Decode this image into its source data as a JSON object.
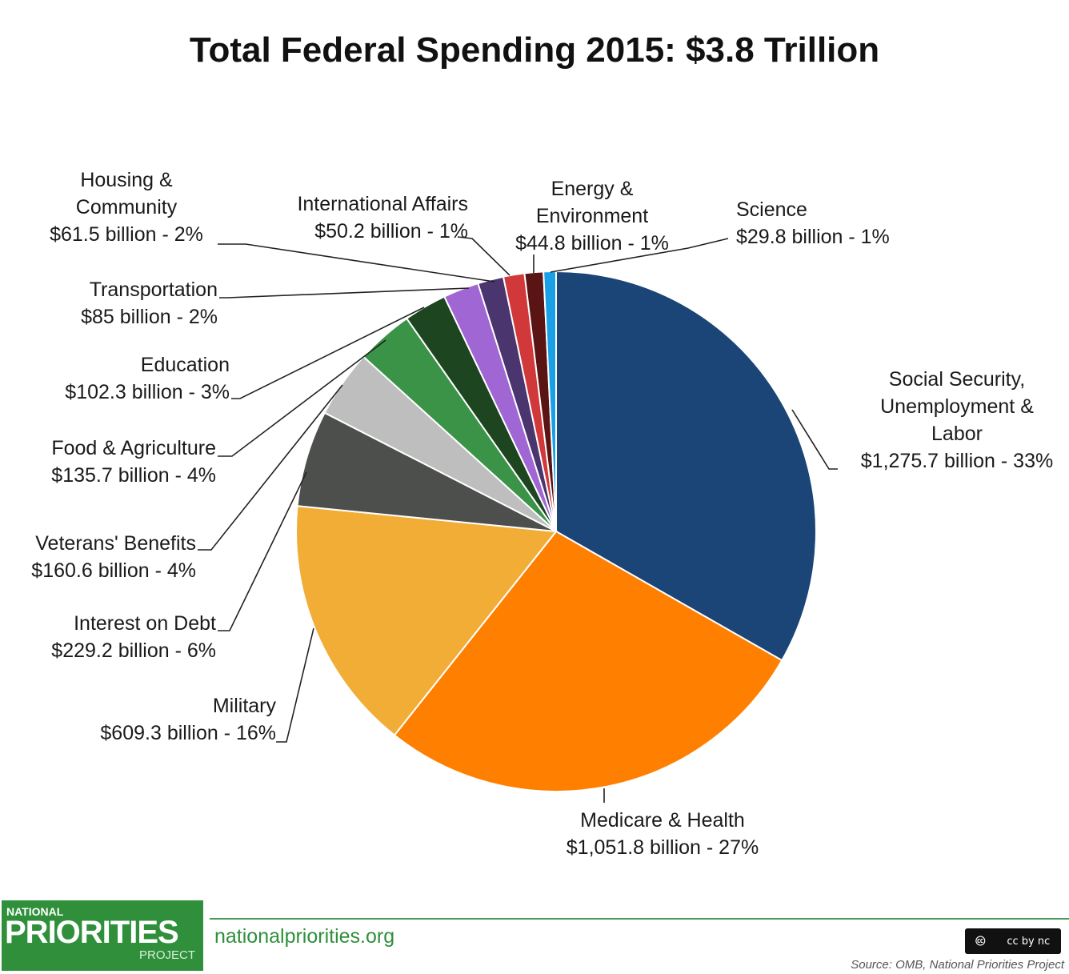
{
  "chart_data": {
    "type": "pie",
    "title": "Total Federal Spending 2015: $3.8 Trillion",
    "start_angle": "12 o'clock",
    "direction": "clockwise",
    "slices": [
      {
        "name": "Social Security, Unemployment & Labor",
        "value": 1275.7,
        "label_lines": [
          "Social Security,",
          "Unemployment &",
          "Labor",
          "$1,275.7 billion - 33%"
        ],
        "color": "#1a4576"
      },
      {
        "name": "Medicare & Health",
        "value": 1051.8,
        "label_lines": [
          "Medicare & Health",
          "$1,051.8 billion - 27%"
        ],
        "color": "#ff7f00"
      },
      {
        "name": "Military",
        "value": 609.3,
        "label_lines": [
          "Military",
          "$609.3 billion - 16%"
        ],
        "color": "#f2ad37"
      },
      {
        "name": "Interest on Debt",
        "value": 229.2,
        "label_lines": [
          "Interest on Debt",
          "$229.2 billion - 6%"
        ],
        "color": "#4d4f4c"
      },
      {
        "name": "Veterans' Benefits",
        "value": 160.6,
        "label_lines": [
          "Veterans' Benefits",
          "$160.6 billion - 4%"
        ],
        "color": "#bebebe"
      },
      {
        "name": "Food & Agriculture",
        "value": 135.7,
        "label_lines": [
          "Food & Agriculture",
          "$135.7 billion - 4%"
        ],
        "color": "#3a9347"
      },
      {
        "name": "Education",
        "value": 102.3,
        "label_lines": [
          "Education",
          "$102.3 billion - 3%"
        ],
        "color": "#1d4520"
      },
      {
        "name": "Transportation",
        "value": 85,
        "label_lines": [
          "Transportation",
          "$85 billion - 2%"
        ],
        "color": "#a066d3"
      },
      {
        "name": "Housing & Community",
        "value": 61.5,
        "label_lines": [
          "Housing &",
          "Community",
          "$61.5 billion - 2%"
        ],
        "color": "#4b356e"
      },
      {
        "name": "International Affairs",
        "value": 50.2,
        "label_lines": [
          "International Affairs",
          "$50.2 billion - 1%"
        ],
        "color": "#d1383a"
      },
      {
        "name": "Energy & Environment",
        "value": 44.8,
        "label_lines": [
          "Energy &",
          "Environment",
          "$44.8 billion - 1%"
        ],
        "color": "#5a1414"
      },
      {
        "name": "Science",
        "value": 29.8,
        "label_lines": [
          "Science",
          "$29.8 billion - 1%"
        ],
        "color": "#1aa0e6"
      }
    ]
  },
  "footer": {
    "logo_small": "NATIONAL",
    "logo_big": "PRIORITIES",
    "logo_sub": "PROJECT",
    "url": "nationalpriorities.org",
    "license": "cc by nc",
    "source": "Source: OMB, National Priorities Project"
  }
}
